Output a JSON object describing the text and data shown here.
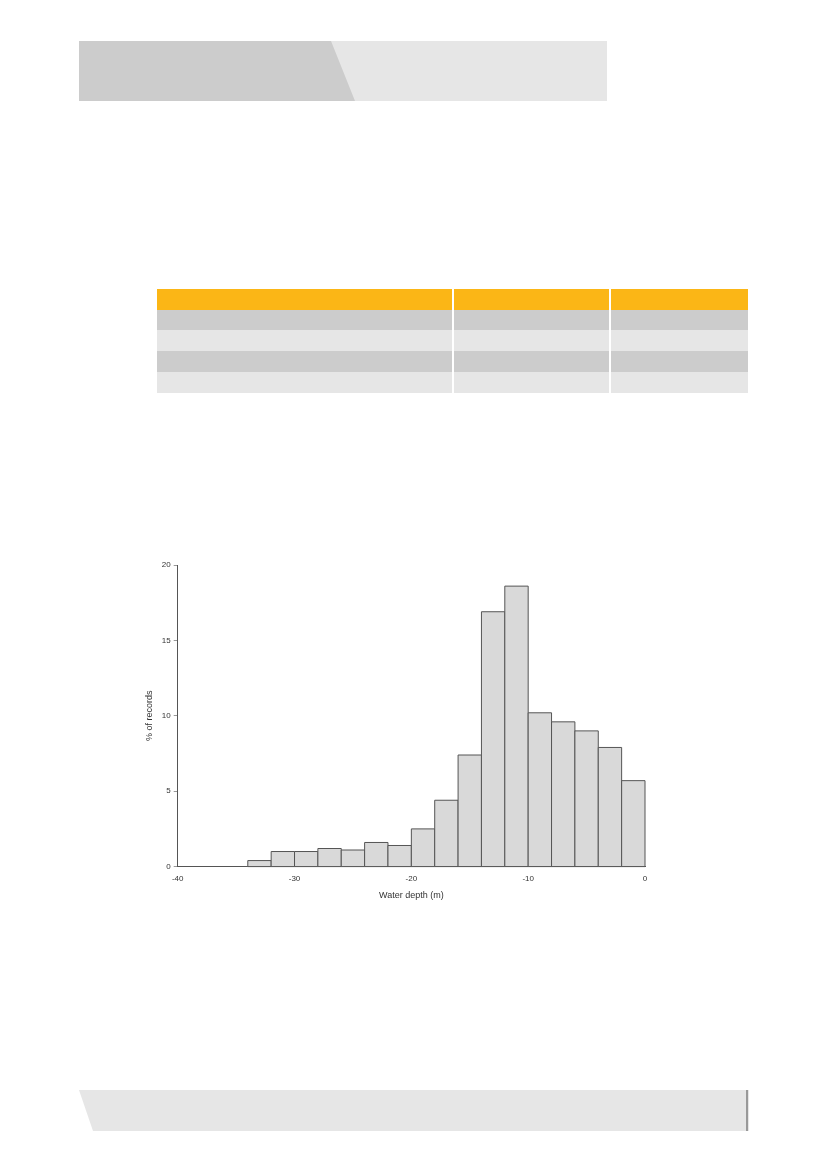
{
  "chart_data": {
    "type": "histogram",
    "xlabel": "Water depth (m)",
    "ylabel": "% of records",
    "bins": [
      -34,
      -32,
      -30,
      -28,
      -26,
      -24,
      -22,
      -20,
      -18,
      -16,
      -14,
      -12,
      -10,
      -8,
      -6,
      -4,
      -2,
      0
    ],
    "values": [
      0.4,
      1.0,
      1.0,
      1.2,
      1.1,
      1.6,
      1.4,
      2.5,
      4.4,
      7.4,
      16.9,
      18.6,
      10.2,
      9.6,
      9.0,
      7.9,
      5.7
    ],
    "color": "#d9d9d9",
    "xlim": [
      -40,
      0
    ],
    "xticks": [
      -40,
      -30,
      -20,
      -10,
      0
    ],
    "ylim": [
      0,
      20
    ],
    "yticks": [
      0,
      5,
      10,
      15,
      20
    ],
    "grid": false
  }
}
